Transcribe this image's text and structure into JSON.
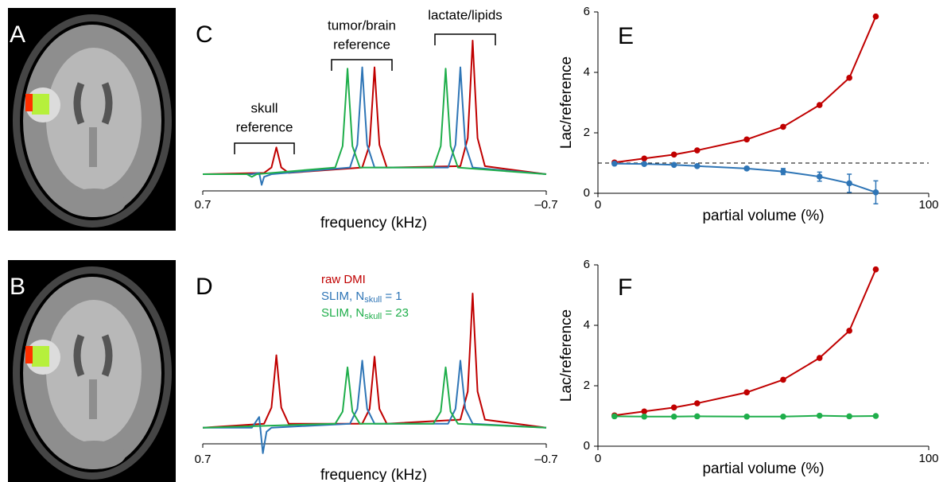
{
  "images": [
    {
      "label": "A"
    },
    {
      "label": "B"
    }
  ],
  "chart_data": [
    {
      "type": "spectrum",
      "label": "C",
      "x_label": "frequency (kHz)",
      "xlim": [
        0.7,
        -0.7
      ],
      "xticks": [
        0.7,
        {
          "value": -0.7,
          "label": "–0.7"
        }
      ],
      "ylim": [
        -0.125,
        1.0
      ],
      "annotations": [
        {
          "lines": [
            "skull",
            "reference"
          ]
        },
        {
          "lines": [
            "tumor/brain",
            "reference"
          ]
        },
        {
          "lines": [
            "lactate/lipids"
          ]
        }
      ],
      "series": [
        {
          "color": "#c00000",
          "x": [
            0.7,
            0.45,
            0.42,
            0.408,
            0.4,
            0.392,
            0.38,
            0.35,
            0.05,
            0.02,
            0.008,
            0,
            -0.008,
            -0.02,
            -0.05,
            -0.35,
            -0.38,
            -0.392,
            -0.4,
            -0.408,
            -0.42,
            -0.45,
            -0.7
          ],
          "values": [
            0,
            0.01,
            0.05,
            0.14,
            0.2,
            0.14,
            0.05,
            0.01,
            0.05,
            0.22,
            0.56,
            0.8,
            0.56,
            0.22,
            0.05,
            0.06,
            0.27,
            0.7,
            1.0,
            0.7,
            0.27,
            0.06,
            0
          ]
        },
        {
          "color": "#2e75b6",
          "x": [
            0.7,
            0.5,
            0.47,
            0.46,
            0.45,
            0.42,
            0.1,
            0.07,
            0.058,
            0.05,
            0.042,
            0.03,
            0,
            -0.3,
            -0.33,
            -0.342,
            -0.35,
            -0.358,
            -0.37,
            -0.4,
            -0.7
          ],
          "values": [
            0,
            0,
            0.01,
            -0.08,
            -0.02,
            0,
            0.05,
            0.22,
            0.56,
            0.8,
            0.56,
            0.22,
            0.05,
            0.05,
            0.22,
            0.56,
            0.8,
            0.56,
            0.22,
            0.05,
            0
          ]
        },
        {
          "color": "#1fae4b",
          "x": [
            0.7,
            0.52,
            0.5,
            0.48,
            0.16,
            0.13,
            0.118,
            0.11,
            0.102,
            0.09,
            0.06,
            -0.24,
            -0.27,
            -0.282,
            -0.29,
            -0.298,
            -0.31,
            -0.34,
            -0.7
          ],
          "values": [
            0,
            0,
            -0.02,
            0,
            0.05,
            0.21,
            0.55,
            0.79,
            0.55,
            0.21,
            0.05,
            0.05,
            0.21,
            0.55,
            0.79,
            0.55,
            0.21,
            0.05,
            0
          ]
        }
      ]
    },
    {
      "type": "spectrum",
      "label": "D",
      "x_label": "frequency (kHz)",
      "xlim": [
        0.7,
        -0.7
      ],
      "xticks": [
        0.7,
        {
          "value": -0.7,
          "label": "–0.7"
        }
      ],
      "ylim": [
        -0.12,
        1.0
      ],
      "series": [
        {
          "name": "raw DMI",
          "color": "#c00000",
          "x": [
            0.7,
            0.45,
            0.42,
            0.408,
            0.4,
            0.392,
            0.38,
            0.35,
            0.05,
            0.02,
            0.008,
            0,
            -0.008,
            -0.02,
            -0.05,
            -0.35,
            -0.38,
            -0.392,
            -0.4,
            -0.408,
            -0.42,
            -0.45,
            -0.7
          ],
          "values": [
            0,
            0.03,
            0.15,
            0.38,
            0.54,
            0.38,
            0.15,
            0.03,
            0.03,
            0.14,
            0.37,
            0.53,
            0.37,
            0.14,
            0.03,
            0.06,
            0.27,
            0.7,
            1.0,
            0.7,
            0.27,
            0.06,
            0
          ]
        },
        {
          "name": [
            "SLIM, N",
            "skull",
            " = 1"
          ],
          "color": "#2e75b6",
          "x": [
            0.7,
            0.5,
            0.47,
            0.455,
            0.44,
            0.42,
            0.1,
            0.07,
            0.058,
            0.05,
            0.042,
            0.03,
            0,
            -0.3,
            -0.33,
            -0.342,
            -0.35,
            -0.358,
            -0.37,
            -0.4,
            -0.7
          ],
          "values": [
            0,
            0,
            0.08,
            -0.19,
            -0.03,
            0,
            0.03,
            0.14,
            0.35,
            0.5,
            0.35,
            0.14,
            0.03,
            0.03,
            0.14,
            0.35,
            0.5,
            0.35,
            0.14,
            0.03,
            0
          ]
        },
        {
          "name": [
            "SLIM, N",
            "skull",
            " = 23"
          ],
          "color": "#1fae4b",
          "x": [
            0.7,
            0.16,
            0.13,
            0.118,
            0.11,
            0.102,
            0.09,
            0.06,
            -0.24,
            -0.27,
            -0.282,
            -0.29,
            -0.298,
            -0.31,
            -0.34,
            -0.7
          ],
          "values": [
            0,
            0.03,
            0.12,
            0.32,
            0.45,
            0.32,
            0.12,
            0.03,
            0.03,
            0.12,
            0.32,
            0.45,
            0.32,
            0.12,
            0.03,
            0
          ]
        }
      ]
    },
    {
      "type": "line",
      "label": "E",
      "x_label": "partial volume (%)",
      "y_label": "Lac/reference",
      "xlim": [
        0,
        100
      ],
      "xticks": [
        0,
        100
      ],
      "ylim": [
        0,
        6
      ],
      "yticks": [
        0,
        2,
        4,
        6
      ],
      "reference_line": 1,
      "series": [
        {
          "color": "#c00000",
          "x": [
            5,
            14,
            23,
            30,
            45,
            56,
            67,
            76,
            84
          ],
          "values": [
            1.02,
            1.15,
            1.28,
            1.42,
            1.78,
            2.2,
            2.92,
            3.82,
            5.85
          ]
        },
        {
          "color": "#2e75b6",
          "x": [
            5,
            14,
            23,
            30,
            45,
            56,
            67,
            76,
            84
          ],
          "values": [
            0.98,
            0.97,
            0.94,
            0.9,
            0.82,
            0.72,
            0.55,
            0.33,
            0.03
          ],
          "errors": [
            0.02,
            0.03,
            0.03,
            0.04,
            0.05,
            0.1,
            0.15,
            0.3,
            0.38
          ]
        }
      ]
    },
    {
      "type": "line",
      "label": "F",
      "x_label": "partial volume (%)",
      "y_label": "Lac/reference",
      "xlim": [
        0,
        100
      ],
      "xticks": [
        0,
        100
      ],
      "ylim": [
        0,
        6
      ],
      "yticks": [
        0,
        2,
        4,
        6
      ],
      "series": [
        {
          "color": "#c00000",
          "x": [
            5,
            14,
            23,
            30,
            45,
            56,
            67,
            76,
            84
          ],
          "values": [
            1.02,
            1.15,
            1.28,
            1.42,
            1.78,
            2.2,
            2.92,
            3.82,
            5.85
          ]
        },
        {
          "color": "#1fae4b",
          "x": [
            5,
            14,
            23,
            30,
            45,
            56,
            67,
            76,
            84
          ],
          "values": [
            0.99,
            0.98,
            0.98,
            0.99,
            0.98,
            0.98,
            1.01,
            0.99,
            1.0
          ]
        }
      ]
    }
  ]
}
